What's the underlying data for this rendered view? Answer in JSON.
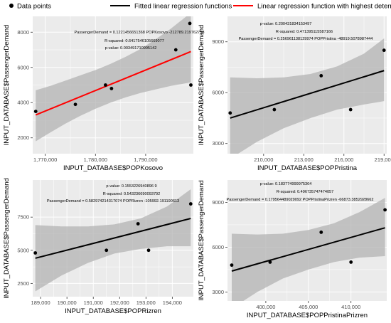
{
  "legend": {
    "items": [
      {
        "label": "Data points",
        "kind": "point",
        "color": "#000000"
      },
      {
        "label": "Fitted linear regression functions",
        "kind": "line",
        "color": "#000000"
      },
      {
        "label": "Linear regression function with highest determination coefficient",
        "kind": "line",
        "color": "#ff0000"
      }
    ]
  },
  "colors": {
    "panel_bg": "#ebebeb",
    "grid": "#ffffff",
    "ribbon": "#b3b3b3",
    "points": "#000000",
    "line_default": "#000000",
    "line_best": "#ff0000"
  },
  "chart_data": [
    {
      "type": "scatter",
      "xlabel": "INPUT_DATABASE$POPKosovo",
      "ylabel": "INPUT_DATABASE$PassengerDemand",
      "xlim": [
        1767500,
        1799500
      ],
      "ylim": [
        1100,
        8900
      ],
      "xticks": [
        1770000,
        1780000,
        1790000
      ],
      "xtick_labels": [
        "1,770,000",
        "1,780,000",
        "1,790,000"
      ],
      "yticks": [
        2000,
        4000,
        6000,
        8000
      ],
      "ytick_labels": [
        "2000",
        "4000",
        "6000",
        "8000"
      ],
      "points": [
        [
          1768100,
          3500
        ],
        [
          1776000,
          3900
        ],
        [
          1782000,
          5000
        ],
        [
          1783200,
          4800
        ],
        [
          1796000,
          7000
        ],
        [
          1798800,
          8500
        ],
        [
          1799000,
          5000
        ]
      ],
      "fit_line": [
        [
          1768100,
          3300
        ],
        [
          1799000,
          6900
        ]
      ],
      "ribbon_upper": [
        [
          1768100,
          4700
        ],
        [
          1771000,
          4950
        ],
        [
          1774000,
          5250
        ],
        [
          1777000,
          5550
        ],
        [
          1780000,
          5850
        ],
        [
          1783000,
          6200
        ],
        [
          1786000,
          6600
        ],
        [
          1789000,
          7050
        ],
        [
          1792000,
          7600
        ],
        [
          1795000,
          8200
        ],
        [
          1799000,
          9100
        ]
      ],
      "ribbon_lower": [
        [
          1768100,
          1800
        ],
        [
          1771000,
          2300
        ],
        [
          1774000,
          2800
        ],
        [
          1777000,
          3250
        ],
        [
          1780000,
          3650
        ],
        [
          1783000,
          4000
        ],
        [
          1786000,
          4300
        ],
        [
          1789000,
          4550
        ],
        [
          1792000,
          4750
        ],
        [
          1795000,
          4950
        ],
        [
          1799000,
          5150
        ]
      ],
      "line_color": "#ff0000",
      "annotations": [
        "PassengerDemand = 0.1221456651368 POPKosovo -212789.219762758",
        "R-squared: 0.6417546105669077",
        "p-value: 0.003491710995142"
      ]
    },
    {
      "type": "scatter",
      "xlabel": "INPUT_DATABASE$POPPristina",
      "ylabel": "INPUT_DATABASE$PassengerDemand",
      "xlim": [
        207300,
        219200
      ],
      "ylim": [
        2400,
        10500
      ],
      "xticks": [
        210000,
        213000,
        216000,
        219000
      ],
      "xtick_labels": [
        "210,000",
        "213,000",
        "216,000",
        "219,000"
      ],
      "yticks": [
        3000,
        6000,
        9000
      ],
      "ytick_labels": [
        "3000",
        "6000",
        "9000"
      ],
      "points": [
        [
          207500,
          4800
        ],
        [
          210800,
          5000
        ],
        [
          214300,
          7000
        ],
        [
          216500,
          5000
        ],
        [
          219000,
          8500
        ]
      ],
      "fit_line": [
        [
          207500,
          4500
        ],
        [
          219000,
          7300
        ]
      ],
      "ribbon_upper": [
        [
          207500,
          6900
        ],
        [
          209500,
          6850
        ],
        [
          211500,
          6900
        ],
        [
          213500,
          7100
        ],
        [
          215500,
          7550
        ],
        [
          217500,
          8300
        ],
        [
          219000,
          9200
        ]
      ],
      "ribbon_lower": [
        [
          207500,
          2100
        ],
        [
          209500,
          3100
        ],
        [
          211500,
          3900
        ],
        [
          213500,
          4500
        ],
        [
          215500,
          5000
        ],
        [
          217500,
          5300
        ],
        [
          219000,
          5500
        ]
      ],
      "line_color": "#000000",
      "annotations": [
        "p-value: 0.200431834153497",
        "R-squared: 0.471395115587166",
        "PassengerDemand = 0.256961138129974 POPPristina -48919.5078987444"
      ]
    },
    {
      "type": "scatter",
      "xlabel": "INPUT_DATABASE$POPRizren",
      "ylabel": "INPUT_DATABASE$PassengerDemand",
      "xlim": [
        188700,
        194800
      ],
      "ylim": [
        1500,
        10300
      ],
      "xticks": [
        189000,
        190000,
        191000,
        192000,
        193000,
        194000
      ],
      "xtick_labels": [
        "189,000",
        "190,000",
        "191,000",
        "192,000",
        "193,000",
        "194,000"
      ],
      "yticks": [
        2500,
        5000,
        7500
      ],
      "ytick_labels": [
        "2500",
        "5000",
        "7500"
      ],
      "points": [
        [
          188800,
          4800
        ],
        [
          191500,
          5000
        ],
        [
          192700,
          7000
        ],
        [
          193100,
          5000
        ],
        [
          194700,
          8500
        ]
      ],
      "fit_line": [
        [
          188800,
          4400
        ],
        [
          194700,
          7400
        ]
      ],
      "ribbon_upper": [
        [
          188800,
          6900
        ],
        [
          189800,
          6800
        ],
        [
          190800,
          6800
        ],
        [
          191800,
          6950
        ],
        [
          192800,
          7400
        ],
        [
          193800,
          8300
        ],
        [
          194700,
          9600
        ]
      ],
      "ribbon_lower": [
        [
          188800,
          1900
        ],
        [
          189800,
          3100
        ],
        [
          190800,
          4050
        ],
        [
          191800,
          4750
        ],
        [
          192800,
          5100
        ],
        [
          193800,
          5300
        ],
        [
          194700,
          5300
        ]
      ],
      "line_color": "#000000",
      "annotations": [
        "p-value: 0.1553226940896 9",
        "R-squared: 0.543236690093792",
        "PassengerDemand = 0.582974214317074 POPRizren -105992.191190613"
      ]
    },
    {
      "type": "scatter",
      "xlabel": "INPUT_DATABASE$POPPristinaPrizren",
      "ylabel": "INPUT_DATABASE$PassengerDemand",
      "xlim": [
        395500,
        414200
      ],
      "ylim": [
        2400,
        10500
      ],
      "xticks": [
        400000,
        405000,
        410000
      ],
      "xtick_labels": [
        "400,000",
        "405,000",
        "410,000"
      ],
      "yticks": [
        3000,
        6000,
        9000
      ],
      "ytick_labels": [
        "3000",
        "6000",
        "9000"
      ],
      "points": [
        [
          396000,
          4800
        ],
        [
          400500,
          5000
        ],
        [
          406500,
          7000
        ],
        [
          410000,
          5000
        ],
        [
          414000,
          8500
        ]
      ],
      "fit_line": [
        [
          396000,
          4400
        ],
        [
          414000,
          7300
        ]
      ],
      "ribbon_upper": [
        [
          396000,
          6900
        ],
        [
          399000,
          6850
        ],
        [
          402000,
          6900
        ],
        [
          405000,
          7150
        ],
        [
          408000,
          7600
        ],
        [
          411000,
          8350
        ],
        [
          414000,
          9300
        ]
      ],
      "ribbon_lower": [
        [
          396000,
          1900
        ],
        [
          399000,
          3000
        ],
        [
          402000,
          3900
        ],
        [
          405000,
          4500
        ],
        [
          408000,
          5000
        ],
        [
          411000,
          5300
        ],
        [
          414000,
          5400
        ]
      ],
      "line_color": "#000000",
      "annotations": [
        "p-value: 0.183774999975364",
        "R-squared: 0.496735747474057",
        "PassengerDemand = 0.179564489029092 POPPristinaPrizren -66873.3852928662"
      ]
    }
  ]
}
